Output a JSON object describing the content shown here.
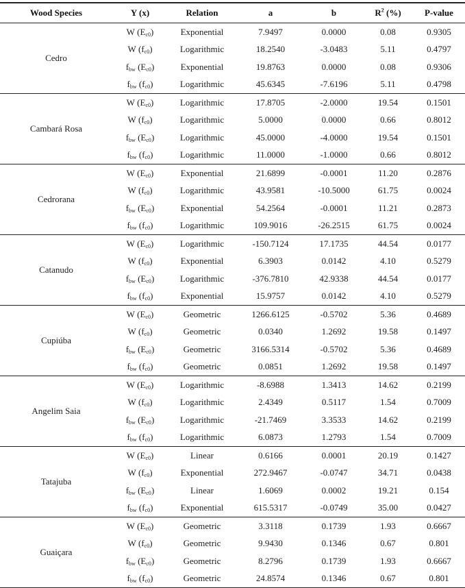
{
  "table": {
    "headers": {
      "species": "Wood Species",
      "y": "Y (x)",
      "relation": "Relation",
      "a": "a",
      "b": "b",
      "r2_base": "R",
      "r2_sup": "2",
      "r2_unit": " (%)",
      "p": "P-value"
    },
    "groups": [
      {
        "species": "Cedro",
        "rows": [
          {
            "v": "W",
            "vs": "",
            "x": "E",
            "xs": "c0",
            "relation": "Exponential",
            "a": "7.9497",
            "b": "0.0000",
            "r2": "0.08",
            "p": "0.9305"
          },
          {
            "v": "W",
            "vs": "",
            "x": "f",
            "xs": "c0",
            "relation": "Logarithmic",
            "a": "18.2540",
            "b": "-3.0483",
            "r2": "5.11",
            "p": "0.4797"
          },
          {
            "v": "f",
            "vs": "bw",
            "x": "E",
            "xs": "c0",
            "relation": "Exponential",
            "a": "19.8763",
            "b": "0.0000",
            "r2": "0.08",
            "p": "0.9306"
          },
          {
            "v": "f",
            "vs": "bw",
            "x": "f",
            "xs": "c0",
            "relation": "Logarithmic",
            "a": "45.6345",
            "b": "-7.6196",
            "r2": "5.11",
            "p": "0.4798"
          }
        ]
      },
      {
        "species": "Cambará Rosa",
        "rows": [
          {
            "v": "W",
            "vs": "",
            "x": "E",
            "xs": "c0",
            "relation": "Logarithmic",
            "a": "17.8705",
            "b": "-2.0000",
            "r2": "19.54",
            "p": "0.1501"
          },
          {
            "v": "W",
            "vs": "",
            "x": "f",
            "xs": "c0",
            "relation": "Logarithmic",
            "a": "5.0000",
            "b": "0.0000",
            "r2": "0.66",
            "p": "0.8012"
          },
          {
            "v": "f",
            "vs": "bw",
            "x": "E",
            "xs": "c0",
            "relation": "Logarithmic",
            "a": "45.0000",
            "b": "-4.0000",
            "r2": "19.54",
            "p": "0.1501"
          },
          {
            "v": "f",
            "vs": "bw",
            "x": "f",
            "xs": "c0",
            "relation": "Logarithmic",
            "a": "11.0000",
            "b": "-1.0000",
            "r2": "0.66",
            "p": "0.8012"
          }
        ]
      },
      {
        "species": "Cedrorana",
        "rows": [
          {
            "v": "W",
            "vs": "",
            "x": "E",
            "xs": "c0",
            "relation": "Exponential",
            "a": "21.6899",
            "b": "-0.0001",
            "r2": "11.20",
            "p": "0.2876"
          },
          {
            "v": "W",
            "vs": "",
            "x": "f",
            "xs": "c0",
            "relation": "Logarithmic",
            "a": "43.9581",
            "b": "-10.5000",
            "r2": "61.75",
            "p": "0.0024"
          },
          {
            "v": "f",
            "vs": "bw",
            "x": "E",
            "xs": "c0",
            "relation": "Exponential",
            "a": "54.2564",
            "b": "-0.0001",
            "r2": "11.21",
            "p": "0.2873"
          },
          {
            "v": "f",
            "vs": "bw",
            "x": "f",
            "xs": "c0",
            "relation": "Logarithmic",
            "a": "109.9016",
            "b": "-26.2515",
            "r2": "61.75",
            "p": "0.0024"
          }
        ]
      },
      {
        "species": "Catanudo",
        "rows": [
          {
            "v": "W",
            "vs": "",
            "x": "E",
            "xs": "c0",
            "relation": "Logarithmic",
            "a": "-150.7124",
            "b": "17.1735",
            "r2": "44.54",
            "p": "0.0177"
          },
          {
            "v": "W",
            "vs": "",
            "x": "f",
            "xs": "c0",
            "relation": "Exponential",
            "a": "6.3903",
            "b": "0.0142",
            "r2": "4.10",
            "p": "0.5279"
          },
          {
            "v": "f",
            "vs": "bw",
            "x": "E",
            "xs": "c0",
            "relation": "Logarithmic",
            "a": "-376.7810",
            "b": "42.9338",
            "r2": "44.54",
            "p": "0.0177"
          },
          {
            "v": "f",
            "vs": "bw",
            "x": "f",
            "xs": "c0",
            "relation": "Exponential",
            "a": "15.9757",
            "b": "0.0142",
            "r2": "4.10",
            "p": "0.5279"
          }
        ]
      },
      {
        "species": "Cupiúba",
        "rows": [
          {
            "v": "W",
            "vs": "",
            "x": "E",
            "xs": "c0",
            "relation": "Geometric",
            "a": "1266.6125",
            "b": "-0.5702",
            "r2": "5.36",
            "p": "0.4689"
          },
          {
            "v": "W",
            "vs": "",
            "x": "f",
            "xs": "c0",
            "relation": "Geometric",
            "a": "0.0340",
            "b": "1.2692",
            "r2": "19.58",
            "p": "0.1497"
          },
          {
            "v": "f",
            "vs": "bw",
            "x": "E",
            "xs": "c0",
            "relation": "Geometric",
            "a": "3166.5314",
            "b": "-0.5702",
            "r2": "5.36",
            "p": "0.4689"
          },
          {
            "v": "f",
            "vs": "bw",
            "x": "f",
            "xs": "c0",
            "relation": "Geometric",
            "a": "0.0851",
            "b": "1.2692",
            "r2": "19.58",
            "p": "0.1497"
          }
        ]
      },
      {
        "species": "Angelim Saia",
        "rows": [
          {
            "v": "W",
            "vs": "",
            "x": "E",
            "xs": "c0",
            "relation": "Logarithmic",
            "a": "-8.6988",
            "b": "1.3413",
            "r2": "14.62",
            "p": "0.2199"
          },
          {
            "v": "W",
            "vs": "",
            "x": "f",
            "xs": "c0",
            "relation": "Logarithmic",
            "a": "2.4349",
            "b": "0.5117",
            "r2": "1.54",
            "p": "0.7009"
          },
          {
            "v": "f",
            "vs": "bw",
            "x": "E",
            "xs": "c0",
            "relation": "Logarithmic",
            "a": "-21.7469",
            "b": "3.3533",
            "r2": "14.62",
            "p": "0.2199"
          },
          {
            "v": "f",
            "vs": "bw",
            "x": "f",
            "xs": "c0",
            "relation": "Logarithmic",
            "a": "6.0873",
            "b": "1.2793",
            "r2": "1.54",
            "p": "0.7009"
          }
        ]
      },
      {
        "species": "Tatajuba",
        "rows": [
          {
            "v": "W",
            "vs": "",
            "x": "E",
            "xs": "c0",
            "relation": "Linear",
            "a": "0.6166",
            "b": "0.0001",
            "r2": "20.19",
            "p": "0.1427"
          },
          {
            "v": "W",
            "vs": "",
            "x": "f",
            "xs": "c0",
            "relation": "Exponential",
            "a": "272.9467",
            "b": "-0.0747",
            "r2": "34.71",
            "p": "0.0438"
          },
          {
            "v": "f",
            "vs": "bw",
            "x": "E",
            "xs": "c0",
            "relation": "Linear",
            "a": "1.6069",
            "b": "0.0002",
            "r2": "19.21",
            "p": "0.154"
          },
          {
            "v": "f",
            "vs": "bw",
            "x": "f",
            "xs": "c0",
            "relation": "Exponential",
            "a": "615.5317",
            "b": "-0.0749",
            "r2": "35.00",
            "p": "0.0427"
          }
        ]
      },
      {
        "species": "Guaiçara",
        "rows": [
          {
            "v": "W",
            "vs": "",
            "x": "E",
            "xs": "c0",
            "relation": "Geometric",
            "a": "3.3118",
            "b": "0.1739",
            "r2": "1.93",
            "p": "0.6667"
          },
          {
            "v": "W",
            "vs": "",
            "x": "f",
            "xs": "c0",
            "relation": "Geometric",
            "a": "9.9430",
            "b": "0.1346",
            "r2": "0.67",
            "p": "0.801"
          },
          {
            "v": "f",
            "vs": "bw",
            "x": "E",
            "xs": "c0",
            "relation": "Geometric",
            "a": "8.2796",
            "b": "0.1739",
            "r2": "1.93",
            "p": "0.6667"
          },
          {
            "v": "f",
            "vs": "bw",
            "x": "f",
            "xs": "c0",
            "relation": "Geometric",
            "a": "24.8574",
            "b": "0.1346",
            "r2": "0.67",
            "p": "0.801"
          }
        ]
      }
    ]
  }
}
